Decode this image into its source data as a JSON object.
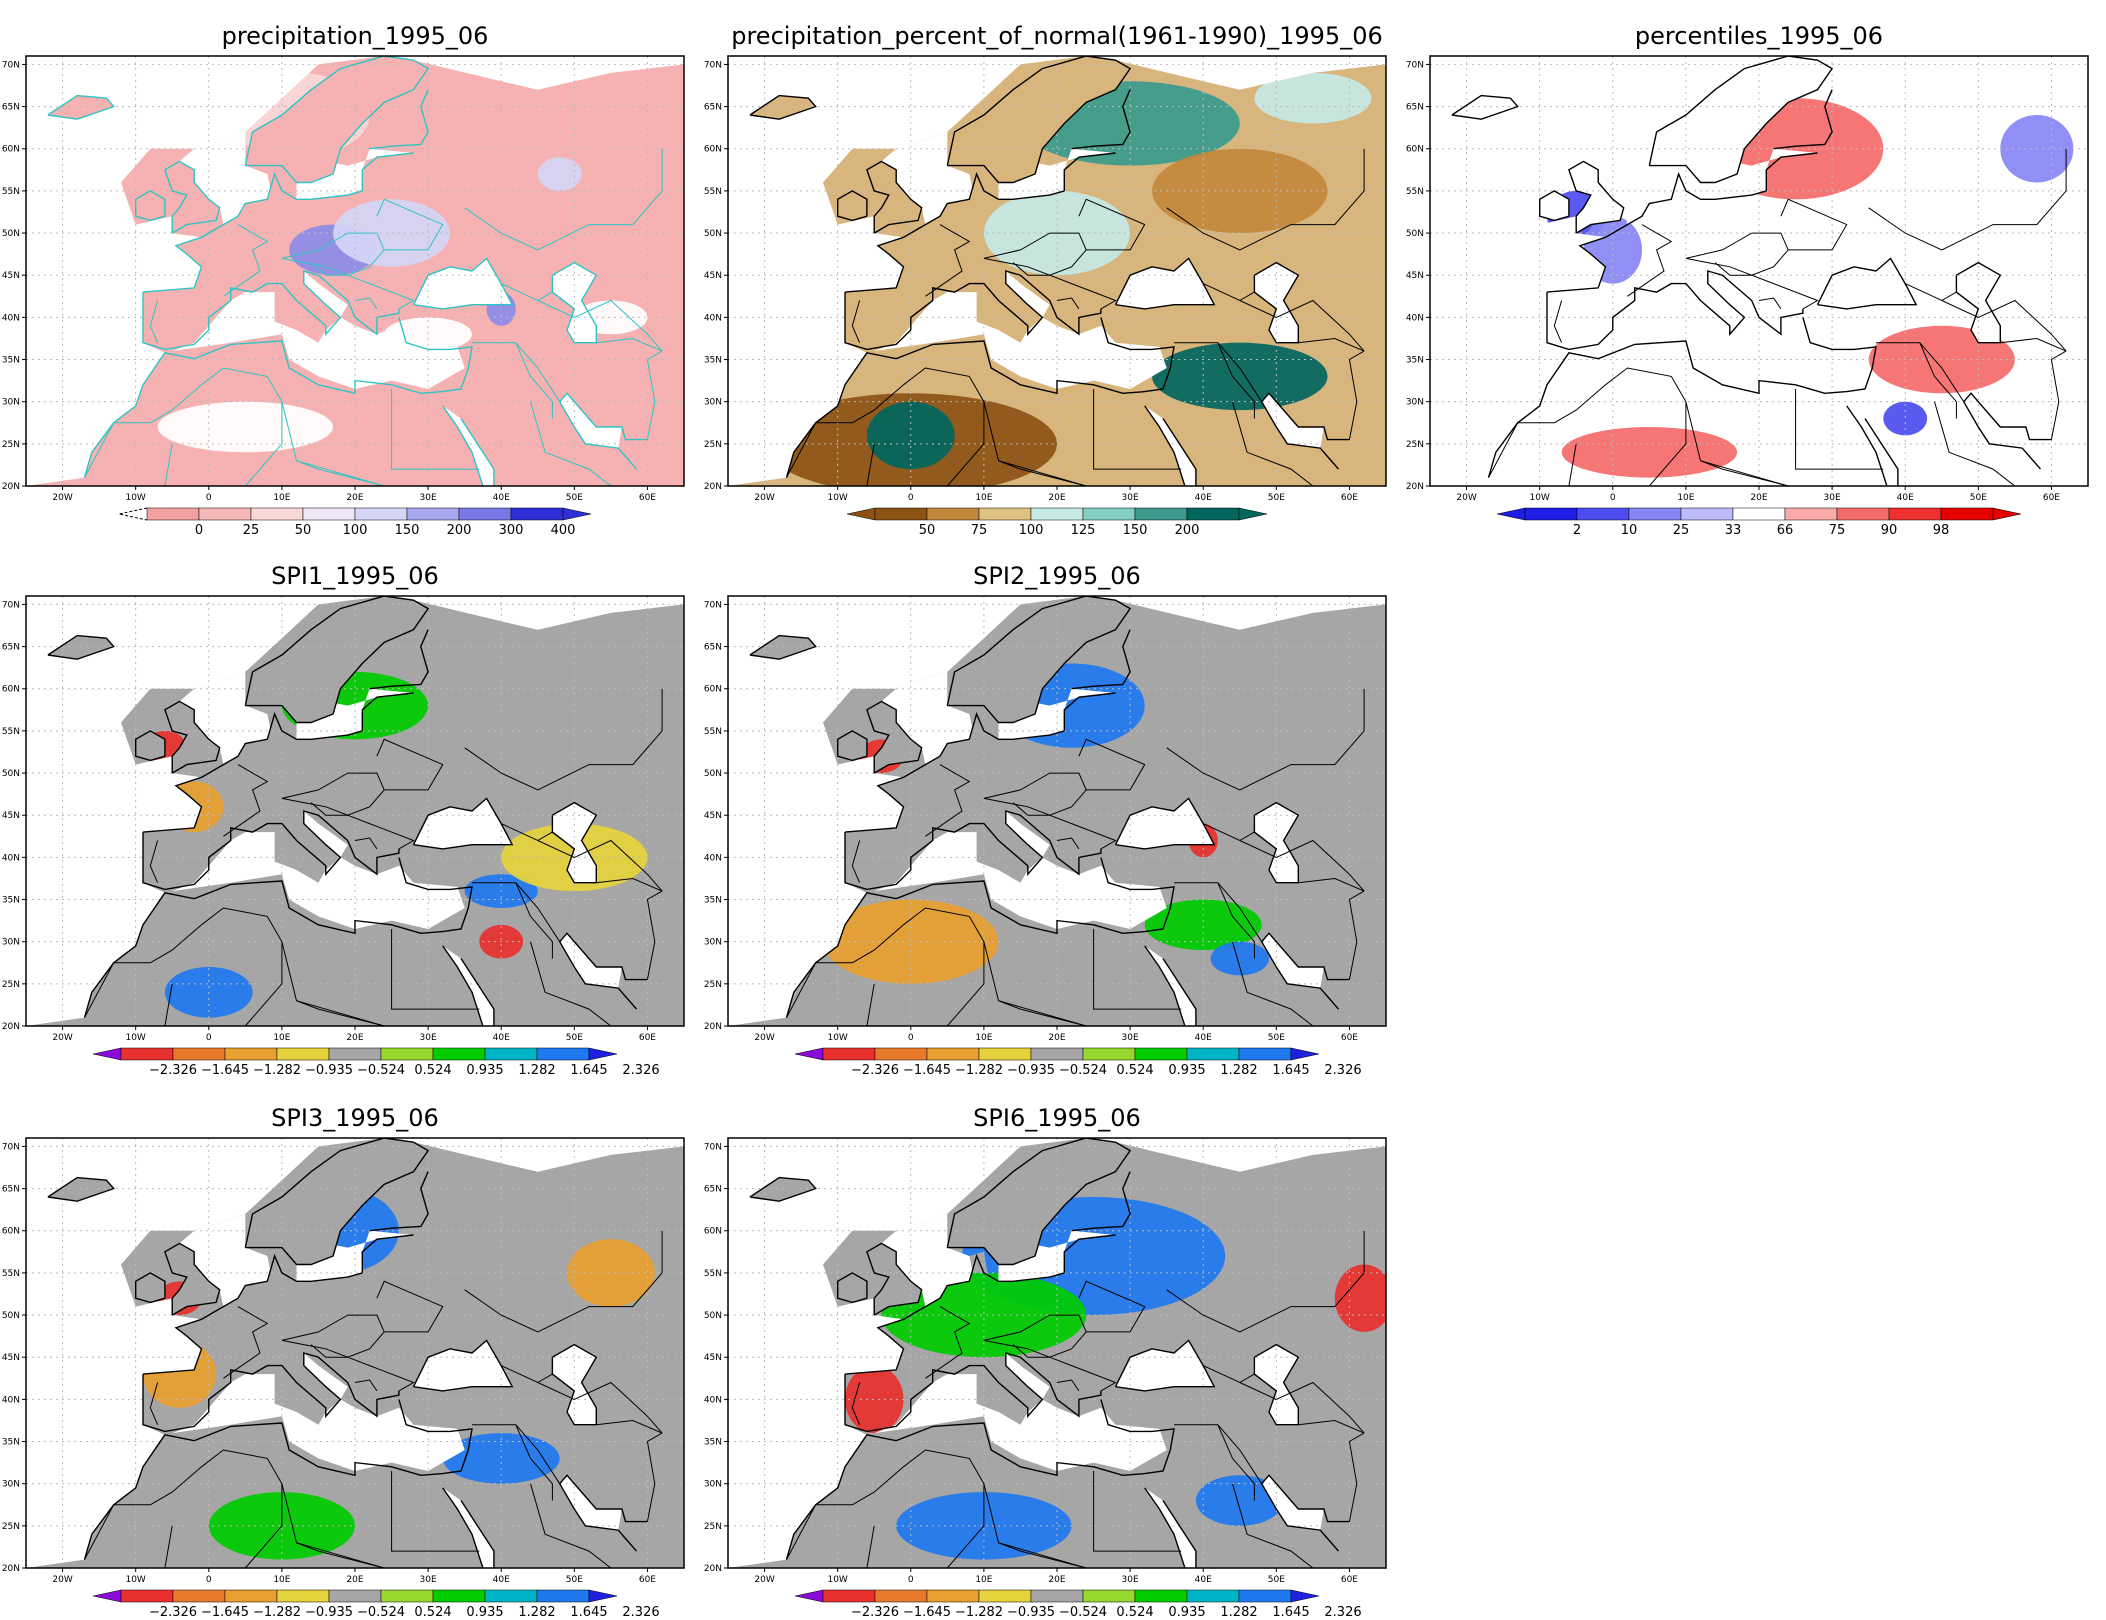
{
  "lat_ticks": [
    "70N",
    "65N",
    "60N",
    "55N",
    "50N",
    "45N",
    "40N",
    "35N",
    "30N",
    "25N",
    "20N"
  ],
  "lon_ticks": [
    "20W",
    "10W",
    "0",
    "10E",
    "20E",
    "30E",
    "40E",
    "50E",
    "60E"
  ],
  "colors": {
    "white": "#ffffff",
    "gray": "#a6a6a6",
    "coast_teal": "#2ec4c4",
    "coast_black": "#000000"
  },
  "panels": [
    {
      "id": "precip",
      "title": "precipitation_1995_06",
      "coast": "teal",
      "base": "#f6b2b2",
      "colorbar": {
        "labels": [
          "0",
          "25",
          "50",
          "100",
          "150",
          "200",
          "300",
          "400"
        ],
        "colors": [
          "#f2a1a1",
          "#f6b9b9",
          "#fad8d8",
          "#efe6f7",
          "#d5d5f6",
          "#a8a8f0",
          "#7878e6",
          "#2f2fd8"
        ],
        "left_arrow": "dashed",
        "right_arrow": "#2f2fd8"
      },
      "blobs": [
        {
          "lon": 12,
          "lat": 64,
          "rx": 10,
          "ry": 5,
          "c": "#fad8d8"
        },
        {
          "lon": 17,
          "lat": 48,
          "rx": 6,
          "ry": 3,
          "c": "#8c8ce8"
        },
        {
          "lon": 25,
          "lat": 50,
          "rx": 8,
          "ry": 4,
          "c": "#d5d5f6"
        },
        {
          "lon": 40,
          "lat": 41,
          "rx": 2,
          "ry": 2,
          "c": "#8c8ce8"
        },
        {
          "lon": 48,
          "lat": 57,
          "rx": 3,
          "ry": 2,
          "c": "#d5d5f6"
        },
        {
          "lon": 5,
          "lat": 27,
          "rx": 12,
          "ry": 3,
          "c": "#ffffff"
        },
        {
          "lon": 30,
          "lat": 38,
          "rx": 6,
          "ry": 2,
          "c": "#ffffff"
        },
        {
          "lon": 55,
          "lat": 40,
          "rx": 5,
          "ry": 2,
          "c": "#ffffff"
        }
      ]
    },
    {
      "id": "pctnorm",
      "title": "precipitation_percent_of_normal(1961-1990)_1995_06",
      "coast": "black",
      "base": "#d7b57d",
      "colorbar": {
        "labels": [
          "50",
          "75",
          "100",
          "125",
          "150",
          "200"
        ],
        "colors": [
          "#8c5214",
          "#c2883c",
          "#dfc282",
          "#c5e9e4",
          "#83cfc4",
          "#3b9b8c",
          "#01665e"
        ],
        "left_arrow": "#8c5214",
        "right_arrow": "#01665e"
      },
      "blobs": [
        {
          "lon": 0,
          "lat": 25,
          "rx": 20,
          "ry": 6,
          "c": "#8c5214"
        },
        {
          "lon": 0,
          "lat": 26,
          "rx": 6,
          "ry": 4,
          "c": "#01665e"
        },
        {
          "lon": 30,
          "lat": 63,
          "rx": 15,
          "ry": 5,
          "c": "#3b9b8c"
        },
        {
          "lon": 45,
          "lat": 33,
          "rx": 12,
          "ry": 4,
          "c": "#01665e"
        },
        {
          "lon": 20,
          "lat": 50,
          "rx": 10,
          "ry": 5,
          "c": "#c5e9e4"
        },
        {
          "lon": 45,
          "lat": 55,
          "rx": 12,
          "ry": 5,
          "c": "#c2883c"
        },
        {
          "lon": 55,
          "lat": 66,
          "rx": 8,
          "ry": 3,
          "c": "#c5e9e4"
        }
      ]
    },
    {
      "id": "pctile",
      "title": "percentiles_1995_06",
      "coast": "black",
      "base": "#ffffff",
      "colorbar": {
        "labels": [
          "2",
          "10",
          "25",
          "33",
          "66",
          "75",
          "90",
          "98"
        ],
        "colors": [
          "#1e1ee6",
          "#4c4cf0",
          "#8686f4",
          "#bcbcf8",
          "#ffffff",
          "#fcaaaa",
          "#f56a6a",
          "#ee3030",
          "#e60000"
        ],
        "left_arrow": "#1e1ee6",
        "right_arrow": "#e60000"
      },
      "blobs": [
        {
          "lon": 25,
          "lat": 60,
          "rx": 12,
          "ry": 6,
          "c": "#f56a6a"
        },
        {
          "lon": -5,
          "lat": 52,
          "rx": 4,
          "ry": 3,
          "c": "#4c4cf0"
        },
        {
          "lon": 0,
          "lat": 48,
          "rx": 4,
          "ry": 4,
          "c": "#8686f4"
        },
        {
          "lon": 45,
          "lat": 35,
          "rx": 10,
          "ry": 4,
          "c": "#f56a6a"
        },
        {
          "lon": 5,
          "lat": 24,
          "rx": 12,
          "ry": 3,
          "c": "#f56a6a"
        },
        {
          "lon": 40,
          "lat": 28,
          "rx": 3,
          "ry": 2,
          "c": "#4c4cf0"
        },
        {
          "lon": 58,
          "lat": 60,
          "rx": 5,
          "ry": 4,
          "c": "#8686f4"
        }
      ]
    },
    {
      "id": "spi1",
      "title": "SPI1_1995_06",
      "coast": "black",
      "base": "#a6a6a6",
      "colorbar": {
        "labels": [
          "-2.326",
          "-1.645",
          "-1.282",
          "-0.935",
          "-0.524",
          "0.524",
          "0.935",
          "1.282",
          "1.645",
          "2.326"
        ],
        "ref": "spi"
      },
      "blobs": [
        {
          "lon": 20,
          "lat": 58,
          "rx": 10,
          "ry": 4,
          "c": "#00cc00"
        },
        {
          "lon": -6,
          "lat": 53,
          "rx": 3,
          "ry": 2,
          "c": "#e8302e"
        },
        {
          "lon": -2,
          "lat": 46,
          "rx": 4,
          "ry": 3,
          "c": "#e8a030"
        },
        {
          "lon": 0,
          "lat": 24,
          "rx": 6,
          "ry": 3,
          "c": "#1e78f0"
        },
        {
          "lon": 40,
          "lat": 36,
          "rx": 5,
          "ry": 2,
          "c": "#1e78f0"
        },
        {
          "lon": 40,
          "lat": 30,
          "rx": 3,
          "ry": 2,
          "c": "#e8302e"
        },
        {
          "lon": 50,
          "lat": 40,
          "rx": 10,
          "ry": 4,
          "c": "#e6d23c"
        }
      ]
    },
    {
      "id": "spi2",
      "title": "SPI2_1995_06",
      "coast": "black",
      "base": "#a6a6a6",
      "colorbar": {
        "labels": [
          "-2.326",
          "-1.645",
          "-1.282",
          "-0.935",
          "-0.524",
          "0.524",
          "0.935",
          "1.282",
          "1.645",
          "2.326"
        ],
        "ref": "spi"
      },
      "blobs": [
        {
          "lon": 22,
          "lat": 58,
          "rx": 10,
          "ry": 5,
          "c": "#1e78f0"
        },
        {
          "lon": -4,
          "lat": 52,
          "rx": 3,
          "ry": 2,
          "c": "#e8302e"
        },
        {
          "lon": 0,
          "lat": 30,
          "rx": 12,
          "ry": 5,
          "c": "#e8a030"
        },
        {
          "lon": 40,
          "lat": 32,
          "rx": 8,
          "ry": 3,
          "c": "#00cc00"
        },
        {
          "lon": 45,
          "lat": 28,
          "rx": 4,
          "ry": 2,
          "c": "#1e78f0"
        },
        {
          "lon": 40,
          "lat": 42,
          "rx": 2,
          "ry": 2,
          "c": "#e8302e"
        }
      ]
    },
    {
      "id": "spi3",
      "title": "SPI3_1995_06",
      "coast": "black",
      "base": "#a6a6a6",
      "colorbar": {
        "labels": [
          "-2.326",
          "-1.645",
          "-1.282",
          "-0.935",
          "-0.524",
          "0.524",
          "0.935",
          "1.282",
          "1.645",
          "2.326"
        ],
        "ref": "spi"
      },
      "blobs": [
        {
          "lon": 18,
          "lat": 60,
          "rx": 8,
          "ry": 5,
          "c": "#1e78f0"
        },
        {
          "lon": -4,
          "lat": 52,
          "rx": 3,
          "ry": 2,
          "c": "#e8302e"
        },
        {
          "lon": -4,
          "lat": 43,
          "rx": 5,
          "ry": 4,
          "c": "#e8a030"
        },
        {
          "lon": 10,
          "lat": 25,
          "rx": 10,
          "ry": 4,
          "c": "#00cc00"
        },
        {
          "lon": 40,
          "lat": 33,
          "rx": 8,
          "ry": 3,
          "c": "#1e78f0"
        },
        {
          "lon": 55,
          "lat": 55,
          "rx": 6,
          "ry": 4,
          "c": "#e8a030"
        }
      ]
    },
    {
      "id": "spi6",
      "title": "SPI6_1995_06",
      "coast": "black",
      "base": "#a6a6a6",
      "colorbar": {
        "labels": [
          "-2.326",
          "-1.645",
          "-1.282",
          "-0.935",
          "-0.524",
          "0.524",
          "0.935",
          "1.282",
          "1.645",
          "2.326"
        ],
        "ref": "spi"
      },
      "blobs": [
        {
          "lon": 25,
          "lat": 57,
          "rx": 18,
          "ry": 7,
          "c": "#1e78f0"
        },
        {
          "lon": 10,
          "lat": 50,
          "rx": 14,
          "ry": 5,
          "c": "#00cc00"
        },
        {
          "lon": -5,
          "lat": 40,
          "rx": 4,
          "ry": 4,
          "c": "#e8302e"
        },
        {
          "lon": 10,
          "lat": 25,
          "rx": 12,
          "ry": 4,
          "c": "#1e78f0"
        },
        {
          "lon": 62,
          "lat": 52,
          "rx": 4,
          "ry": 4,
          "c": "#e8302e"
        },
        {
          "lon": 45,
          "lat": 28,
          "rx": 6,
          "ry": 3,
          "c": "#1e78f0"
        }
      ]
    }
  ],
  "spi_colors": [
    "#8a0ad8",
    "#e8302e",
    "#e87a2a",
    "#e8a030",
    "#e6d23c",
    "#a6a6a6",
    "#96d82e",
    "#00cc00",
    "#00b4c8",
    "#1e78f0",
    "#2020e0"
  ]
}
